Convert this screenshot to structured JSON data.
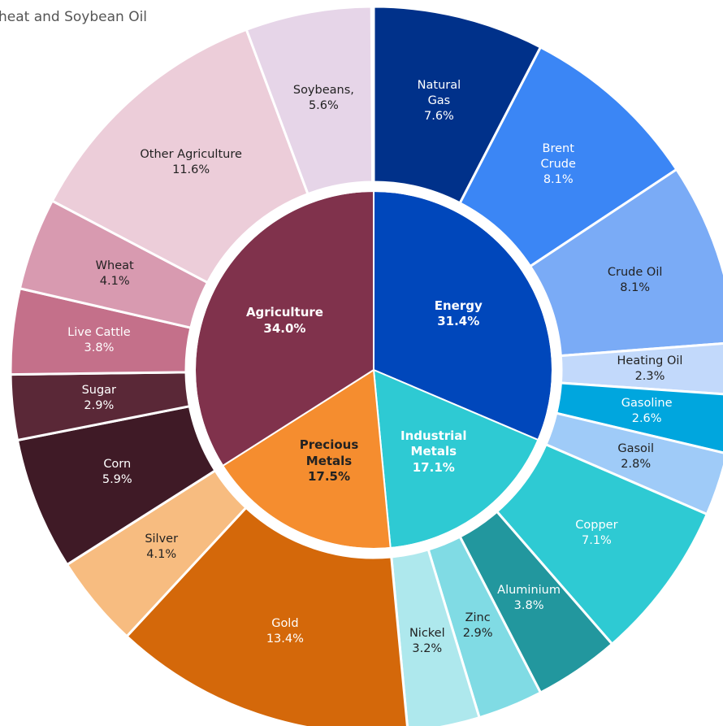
{
  "chart_data": {
    "type": "sunburst",
    "title": "heat and Soybean Oil",
    "groups": [
      {
        "name": "Energy",
        "value": 31.4,
        "value_label": "31.4%",
        "color": "#0047bb",
        "children": [
          {
            "name": "Natural Gas",
            "value": 7.6,
            "value_label": "7.6%",
            "color": "#00318a"
          },
          {
            "name": "Brent Crude",
            "value": 8.1,
            "value_label": "8.1%",
            "color": "#3b86f5"
          },
          {
            "name": "Crude Oil",
            "value": 8.1,
            "value_label": "8.1%",
            "color": "#7aabf6"
          },
          {
            "name": "Heating Oil",
            "value": 2.3,
            "value_label": "2.3%",
            "color": "#c2d9fb"
          },
          {
            "name": "Gasoline",
            "value": 2.6,
            "value_label": "2.6%",
            "color": "#00a6de"
          },
          {
            "name": "Gasoil",
            "value": 2.8,
            "value_label": "2.8%",
            "color": "#9fcbf8"
          }
        ]
      },
      {
        "name": "Industrial Metals",
        "value": 17.1,
        "value_label": "17.1%",
        "color": "#2ecad3",
        "children": [
          {
            "name": "Copper",
            "value": 7.1,
            "value_label": "7.1%",
            "color": "#2ecad3"
          },
          {
            "name": "Aluminium",
            "value": 3.8,
            "value_label": "3.8%",
            "color": "#22979e"
          },
          {
            "name": "Zinc",
            "value": 2.9,
            "value_label": "2.9%",
            "color": "#80dbe4"
          },
          {
            "name": "Nickel",
            "value": 3.2,
            "value_label": "3.2%",
            "color": "#aee8ed"
          }
        ]
      },
      {
        "name": "Precious Metals",
        "value": 17.5,
        "value_label": "17.5%",
        "color": "#f58d2f",
        "children": [
          {
            "name": "Gold",
            "value": 13.4,
            "value_label": "13.4%",
            "color": "#d4680a"
          },
          {
            "name": "Silver",
            "value": 4.1,
            "value_label": "4.1%",
            "color": "#f7bc80"
          }
        ]
      },
      {
        "name": "Agriculture",
        "value": 34.0,
        "value_label": "34.0%",
        "color": "#80324c",
        "children": [
          {
            "name": "Corn",
            "value": 5.9,
            "value_label": "5.9%",
            "color": "#3f1a26"
          },
          {
            "name": "Sugar",
            "value": 2.9,
            "value_label": "2.9%",
            "color": "#5a2837"
          },
          {
            "name": "Live Cattle",
            "value": 3.8,
            "value_label": "3.8%",
            "color": "#c4708a"
          },
          {
            "name": "Wheat",
            "value": 4.1,
            "value_label": "4.1%",
            "color": "#d89ab0"
          },
          {
            "name": "Other Agriculture",
            "value": 11.6,
            "value_label": "11.6%",
            "color": "#eccdd9"
          },
          {
            "name": "Soybeans,",
            "value": 5.6,
            "value_label": "5.6%",
            "color": "#e6d5e8"
          }
        ]
      }
    ]
  }
}
